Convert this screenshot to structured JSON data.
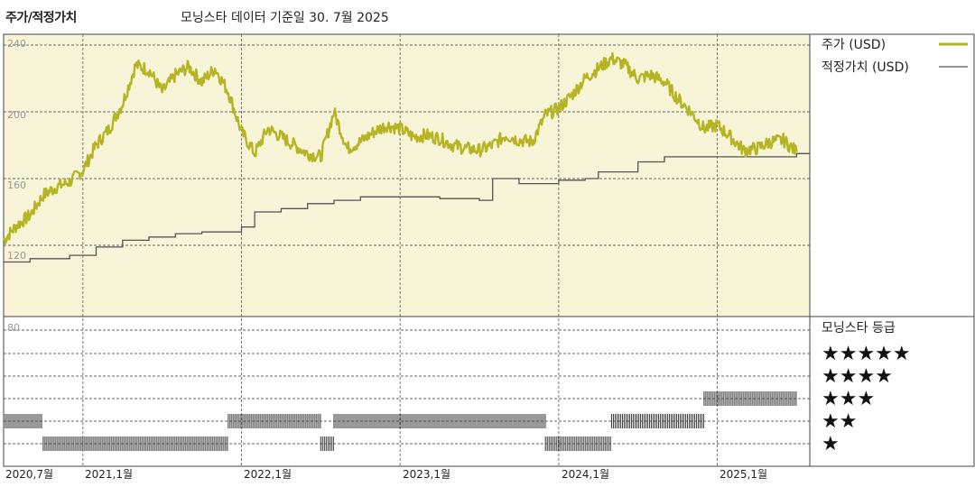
{
  "header": {
    "title": "주가/적정가치",
    "subtitle": "모닝스타 데이터 기준일 30. 7월 2025"
  },
  "colors": {
    "price_line": "#b5b523",
    "fair_value_line": "#555555",
    "price_panel_bg": "#f8f4d8",
    "rating_bar": "#333333"
  },
  "chart_data": [
    {
      "type": "line",
      "title": "",
      "ylim": [
        110,
        240
      ],
      "y_ticks": [
        "240",
        "200",
        "160",
        "120"
      ],
      "x_ticks": [
        "2020,7월",
        "2021,1월",
        "2022,1월",
        "2023,1월",
        "2024,1월",
        "2025,1월"
      ],
      "grid": true,
      "legend_position": "right",
      "series": [
        {
          "name": "주가 (USD)",
          "points": [
            [
              "2020-07",
              123
            ],
            [
              "2020-08",
              132
            ],
            [
              "2020-09",
              138
            ],
            [
              "2020-10",
              150
            ],
            [
              "2020-11",
              155
            ],
            [
              "2020-12",
              158
            ],
            [
              "2021-01",
              165
            ],
            [
              "2021-02",
              180
            ],
            [
              "2021-03",
              190
            ],
            [
              "2021-04",
              205
            ],
            [
              "2021-05",
              228
            ],
            [
              "2021-06",
              225
            ],
            [
              "2021-07",
              212
            ],
            [
              "2021-08",
              222
            ],
            [
              "2021-09",
              227
            ],
            [
              "2021-10",
              218
            ],
            [
              "2021-11",
              226
            ],
            [
              "2021-12",
              212
            ],
            [
              "2022-01",
              188
            ],
            [
              "2022-02",
              175
            ],
            [
              "2022-03",
              190
            ],
            [
              "2022-04",
              185
            ],
            [
              "2022-05",
              180
            ],
            [
              "2022-06",
              175
            ],
            [
              "2022-07",
              173
            ],
            [
              "2022-08",
              200
            ],
            [
              "2022-09",
              178
            ],
            [
              "2022-10",
              182
            ],
            [
              "2022-11",
              188
            ],
            [
              "2022-12",
              192
            ],
            [
              "2023-01",
              190
            ],
            [
              "2023-02",
              185
            ],
            [
              "2023-03",
              186
            ],
            [
              "2023-04",
              184
            ],
            [
              "2023-05",
              180
            ],
            [
              "2023-06",
              178
            ],
            [
              "2023-07",
              177
            ],
            [
              "2023-08",
              180
            ],
            [
              "2023-09",
              186
            ],
            [
              "2023-10",
              183
            ],
            [
              "2023-11",
              182
            ],
            [
              "2023-12",
              198
            ],
            [
              "2024-01",
              202
            ],
            [
              "2024-02",
              210
            ],
            [
              "2024-03",
              220
            ],
            [
              "2024-04",
              226
            ],
            [
              "2024-05",
              232
            ],
            [
              "2024-06",
              228
            ],
            [
              "2024-07",
              220
            ],
            [
              "2024-08",
              222
            ],
            [
              "2024-09",
              218
            ],
            [
              "2024-10",
              208
            ],
            [
              "2024-11",
              200
            ],
            [
              "2024-12",
              190
            ],
            [
              "2025-01",
              192
            ],
            [
              "2025-02",
              185
            ],
            [
              "2025-03",
              177
            ],
            [
              "2025-04",
              178
            ],
            [
              "2025-05",
              182
            ],
            [
              "2025-06",
              183
            ],
            [
              "2025-07",
              176
            ]
          ]
        },
        {
          "name": "적정가치 (USD)",
          "step": true,
          "points": [
            [
              "2020-07",
              110
            ],
            [
              "2020-09",
              112
            ],
            [
              "2020-12",
              114
            ],
            [
              "2021-02",
              119
            ],
            [
              "2021-04",
              123
            ],
            [
              "2021-06",
              125
            ],
            [
              "2021-08",
              127
            ],
            [
              "2021-10",
              128
            ],
            [
              "2022-01",
              131
            ],
            [
              "2022-02",
              140
            ],
            [
              "2022-04",
              142
            ],
            [
              "2022-06",
              145
            ],
            [
              "2022-08",
              147
            ],
            [
              "2022-10",
              149
            ],
            [
              "2023-01",
              149
            ],
            [
              "2023-04",
              148
            ],
            [
              "2023-07",
              147
            ],
            [
              "2023-08",
              160
            ],
            [
              "2023-10",
              157
            ],
            [
              "2024-01",
              159
            ],
            [
              "2024-03",
              160
            ],
            [
              "2024-04",
              164
            ],
            [
              "2024-07",
              170
            ],
            [
              "2024-09",
              173
            ],
            [
              "2025-04",
              173
            ],
            [
              "2025-07",
              175
            ]
          ]
        }
      ]
    },
    {
      "type": "bar",
      "title": "모닝스타 등급",
      "y_ticks": [
        "80"
      ],
      "categories": [
        "★★★★★",
        "★★★★",
        "★★★",
        "★★",
        "★"
      ],
      "rating_periods": [
        {
          "from": "2020-07",
          "to": "2020-10",
          "stars": 2
        },
        {
          "from": "2020-10",
          "to": "2021-12",
          "stars": 1
        },
        {
          "from": "2021-12",
          "to": "2022-07",
          "stars": 2
        },
        {
          "from": "2022-07",
          "to": "2022-08",
          "stars": 1
        },
        {
          "from": "2022-08",
          "to": "2023-12",
          "stars": 2
        },
        {
          "from": "2023-12",
          "to": "2024-05",
          "stars": 1
        },
        {
          "from": "2024-05",
          "to": "2024-12",
          "stars": 2
        },
        {
          "from": "2024-12",
          "to": "2025-07",
          "stars": 3
        }
      ]
    }
  ]
}
